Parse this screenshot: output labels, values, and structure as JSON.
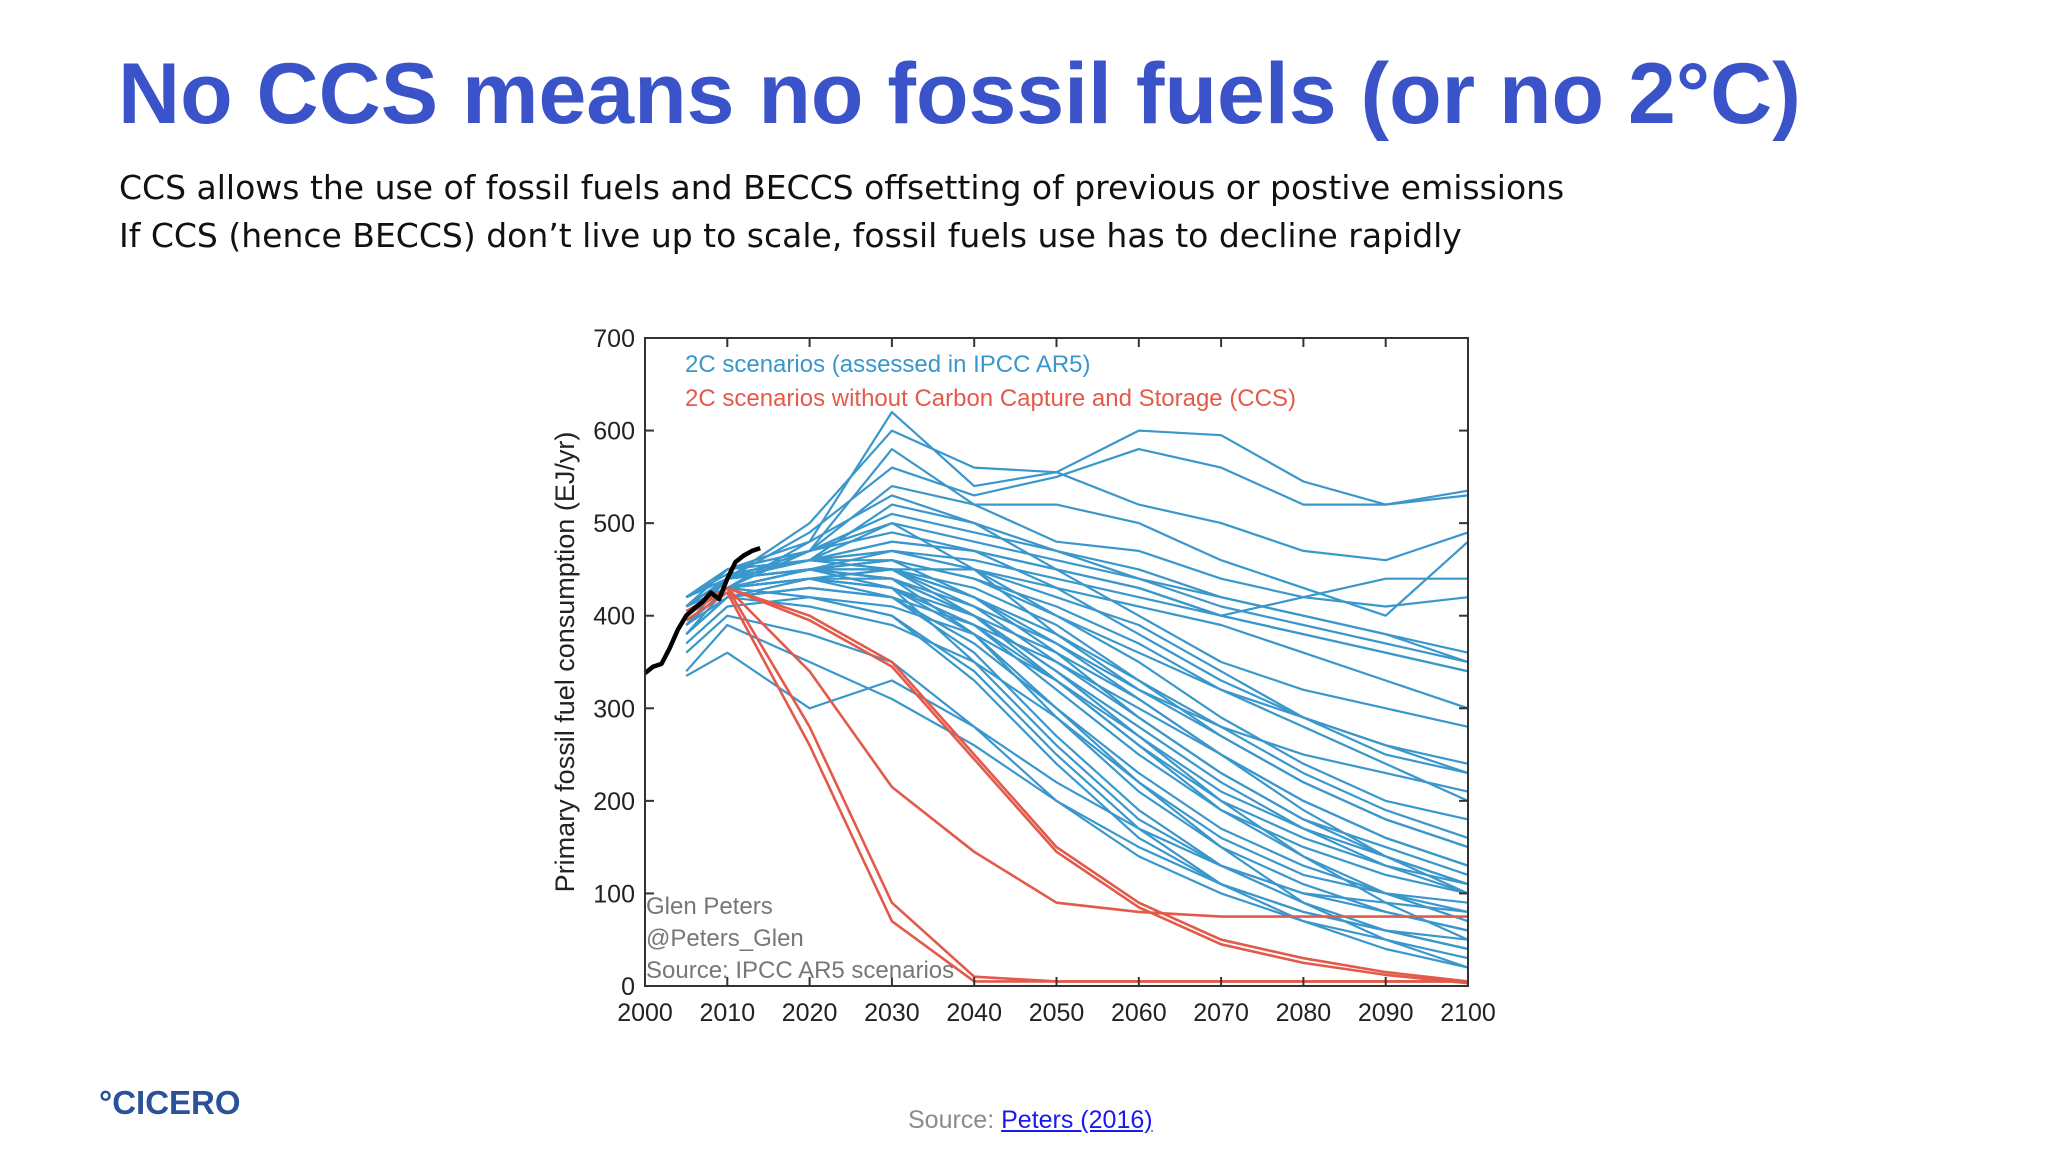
{
  "slide": {
    "title": "No CCS means no fossil fuels (or no 2°C)",
    "subtitle_lines": [
      "CCS allows the use of fossil fuels and BECCS offsetting of previous or postive emissions",
      "If CCS (hence BECCS) don’t live up to scale, fossil fuels use has to decline rapidly"
    ],
    "logo_text": "°CICERO",
    "source_prefix": "Source: ",
    "source_link_text": "Peters (2016)"
  },
  "colors": {
    "title": "#3a53c8",
    "blue_series": "#3a97cc",
    "red_series": "#e35a4a",
    "historical": "#000000",
    "logo": "#2a5298",
    "link": "#1a1aee"
  },
  "chart_data": {
    "type": "line",
    "xlabel": "",
    "ylabel": "Primary fossil fuel consumption (EJ/yr)",
    "xlim": [
      2000,
      2100
    ],
    "ylim": [
      0,
      700
    ],
    "x_ticks": [
      2000,
      2010,
      2020,
      2030,
      2040,
      2050,
      2060,
      2070,
      2080,
      2090,
      2100
    ],
    "y_ticks": [
      0,
      100,
      200,
      300,
      400,
      500,
      600,
      700
    ],
    "grid": false,
    "legend_position": "top-left",
    "legend": [
      {
        "label": "2C scenarios (assessed in IPCC AR5)",
        "color": "#3a97cc"
      },
      {
        "label": "2C scenarios without Carbon Capture and Storage (CCS)",
        "color": "#e35a4a"
      }
    ],
    "annotations": [
      "Glen Peters",
      "@Peters_Glen",
      "Source: IPCC AR5 scenarios"
    ],
    "x": [
      2005,
      2010,
      2020,
      2030,
      2040,
      2050,
      2060,
      2070,
      2080,
      2090,
      2100
    ],
    "historical": {
      "x": [
        2000,
        2001,
        2002,
        2003,
        2004,
        2005,
        2006,
        2007,
        2008,
        2009,
        2010,
        2011,
        2012,
        2013,
        2014
      ],
      "y": [
        338,
        345,
        348,
        365,
        385,
        400,
        408,
        415,
        425,
        418,
        440,
        458,
        465,
        470,
        473
      ]
    },
    "series_blue": [
      [
        410,
        430,
        480,
        620,
        540,
        555,
        600,
        595,
        545,
        520,
        535
      ],
      [
        420,
        440,
        500,
        600,
        560,
        555,
        520,
        500,
        470,
        460,
        490
      ],
      [
        400,
        430,
        470,
        580,
        520,
        520,
        500,
        460,
        430,
        400,
        480
      ],
      [
        390,
        440,
        490,
        560,
        530,
        550,
        580,
        560,
        520,
        520,
        530
      ],
      [
        410,
        450,
        470,
        540,
        520,
        480,
        470,
        440,
        420,
        410,
        420
      ],
      [
        400,
        440,
        460,
        520,
        500,
        470,
        450,
        420,
        400,
        380,
        360
      ],
      [
        420,
        445,
        460,
        500,
        480,
        460,
        440,
        420,
        400,
        380,
        350
      ],
      [
        410,
        440,
        460,
        480,
        470,
        450,
        430,
        400,
        380,
        360,
        340
      ],
      [
        400,
        430,
        450,
        470,
        460,
        440,
        420,
        400,
        420,
        440,
        440
      ],
      [
        380,
        430,
        440,
        450,
        450,
        430,
        410,
        390,
        360,
        330,
        300
      ],
      [
        410,
        440,
        460,
        470,
        450,
        420,
        390,
        340,
        290,
        250,
        230
      ],
      [
        400,
        430,
        450,
        460,
        440,
        410,
        370,
        320,
        280,
        240,
        200
      ],
      [
        420,
        440,
        460,
        470,
        450,
        400,
        350,
        290,
        240,
        200,
        180
      ],
      [
        410,
        430,
        440,
        450,
        430,
        390,
        330,
        270,
        220,
        180,
        150
      ],
      [
        390,
        430,
        450,
        450,
        420,
        370,
        310,
        250,
        200,
        160,
        130
      ],
      [
        400,
        440,
        460,
        460,
        420,
        360,
        290,
        230,
        180,
        150,
        120
      ],
      [
        410,
        440,
        450,
        440,
        400,
        340,
        270,
        210,
        170,
        140,
        110
      ],
      [
        400,
        430,
        440,
        430,
        390,
        320,
        250,
        190,
        150,
        120,
        100
      ],
      [
        380,
        420,
        430,
        420,
        370,
        300,
        230,
        170,
        130,
        100,
        80
      ],
      [
        410,
        440,
        450,
        440,
        380,
        290,
        210,
        150,
        110,
        80,
        60
      ],
      [
        400,
        430,
        440,
        420,
        360,
        270,
        190,
        130,
        90,
        60,
        40
      ],
      [
        390,
        430,
        420,
        400,
        340,
        250,
        170,
        110,
        70,
        40,
        20
      ],
      [
        410,
        440,
        450,
        430,
        350,
        260,
        180,
        130,
        100,
        90,
        80
      ],
      [
        400,
        440,
        460,
        450,
        400,
        330,
        260,
        200,
        160,
        130,
        110
      ],
      [
        380,
        420,
        440,
        430,
        380,
        300,
        220,
        160,
        120,
        100,
        90
      ],
      [
        370,
        410,
        420,
        400,
        330,
        240,
        160,
        110,
        80,
        60,
        50
      ],
      [
        360,
        400,
        380,
        350,
        280,
        200,
        140,
        100,
        70,
        50,
        30
      ],
      [
        340,
        390,
        350,
        310,
        260,
        200,
        150,
        110,
        80,
        60,
        40
      ],
      [
        335,
        360,
        300,
        330,
        280,
        220,
        170,
        130,
        100,
        80,
        60
      ],
      [
        410,
        440,
        470,
        500,
        450,
        380,
        320,
        280,
        250,
        230,
        210
      ],
      [
        420,
        450,
        480,
        530,
        500,
        450,
        400,
        350,
        320,
        300,
        280
      ],
      [
        400,
        440,
        470,
        510,
        490,
        470,
        440,
        410,
        390,
        370,
        350
      ],
      [
        410,
        440,
        460,
        480,
        470,
        450,
        430,
        400,
        380,
        360,
        340
      ],
      [
        400,
        430,
        450,
        460,
        440,
        400,
        360,
        320,
        290,
        260,
        240
      ],
      [
        420,
        450,
        470,
        490,
        470,
        430,
        380,
        330,
        290,
        260,
        230
      ],
      [
        390,
        430,
        440,
        440,
        400,
        340,
        280,
        220,
        170,
        130,
        100
      ],
      [
        400,
        440,
        450,
        450,
        410,
        350,
        290,
        230,
        180,
        140,
        110
      ],
      [
        410,
        430,
        420,
        410,
        380,
        330,
        270,
        200,
        140,
        90,
        50
      ],
      [
        380,
        420,
        410,
        390,
        350,
        290,
        220,
        150,
        90,
        50,
        20
      ],
      [
        400,
        430,
        440,
        430,
        400,
        360,
        310,
        250,
        190,
        140,
        100
      ],
      [
        410,
        440,
        450,
        440,
        410,
        370,
        320,
        270,
        220,
        180,
        150
      ],
      [
        420,
        450,
        460,
        450,
        420,
        380,
        330,
        280,
        230,
        190,
        160
      ],
      [
        390,
        420,
        430,
        420,
        390,
        350,
        300,
        250,
        200,
        160,
        130
      ],
      [
        400,
        430,
        440,
        430,
        390,
        330,
        260,
        190,
        140,
        100,
        70
      ]
    ],
    "series_red": [
      [
        400,
        430,
        280,
        90,
        10,
        5,
        5,
        5,
        5,
        5,
        5
      ],
      [
        395,
        425,
        260,
        70,
        5,
        5,
        5,
        5,
        5,
        5,
        5
      ],
      [
        405,
        430,
        340,
        215,
        145,
        90,
        80,
        75,
        75,
        75,
        75
      ],
      [
        400,
        430,
        400,
        350,
        250,
        150,
        90,
        50,
        30,
        15,
        5
      ],
      [
        400,
        430,
        395,
        345,
        245,
        145,
        85,
        45,
        25,
        12,
        3
      ]
    ]
  }
}
